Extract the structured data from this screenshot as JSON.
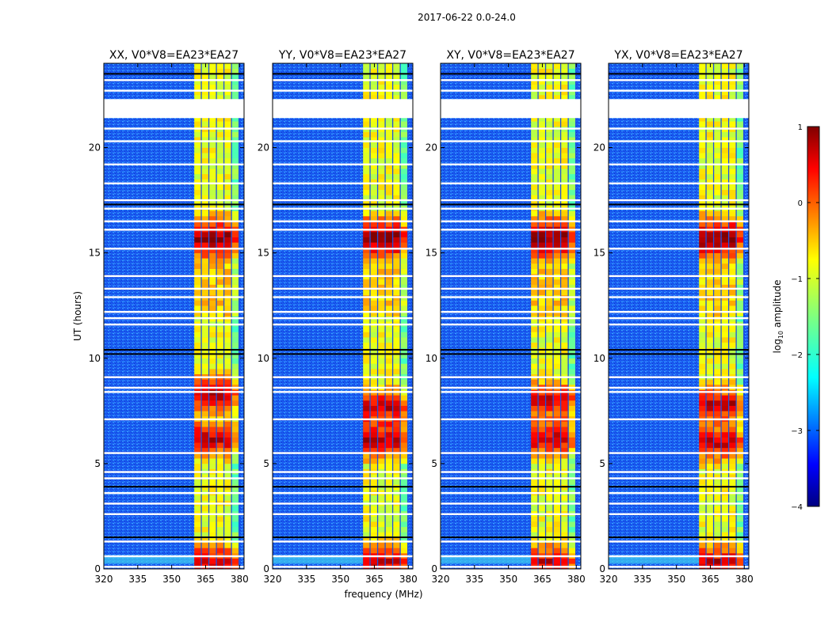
{
  "figure": {
    "suptitle": "2017-06-22 0.0-24.0"
  },
  "chart_data": [
    {
      "type": "heatmap",
      "title": "XX, V0*V8=EA23*EA27",
      "xlabel": "",
      "ylabel": "UT (hours)",
      "xlim": [
        320,
        382
      ],
      "ylim": [
        0,
        24
      ],
      "xticks": [
        "320",
        "335",
        "350",
        "365",
        "380"
      ],
      "yticks": [
        "0",
        "5",
        "10",
        "15",
        "20"
      ],
      "strong_band_mhz": [
        360,
        380
      ],
      "strong_peak_hours": [
        0.3,
        6.2,
        8.3,
        15.7
      ]
    },
    {
      "type": "heatmap",
      "title": "YY, V0*V8=EA23*EA27",
      "xlabel": "frequency (MHz)",
      "ylabel": "",
      "xlim": [
        320,
        382
      ],
      "ylim": [
        0,
        24
      ],
      "xticks": [
        "320",
        "335",
        "350",
        "365",
        "380"
      ],
      "yticks": [
        "0",
        "5",
        "10",
        "15",
        "20"
      ],
      "strong_band_mhz": [
        360,
        380
      ],
      "strong_peak_hours": [
        0.3,
        6.1,
        7.7,
        15.7
      ]
    },
    {
      "type": "heatmap",
      "title": "XY, V0*V8=EA23*EA27",
      "xlabel": "",
      "ylabel": "",
      "xlim": [
        320,
        382
      ],
      "ylim": [
        0,
        24
      ],
      "xticks": [
        "320",
        "335",
        "350",
        "365",
        "380"
      ],
      "yticks": [
        "0",
        "5",
        "10",
        "15",
        "20"
      ],
      "strong_band_mhz": [
        360,
        380
      ],
      "strong_peak_hours": [
        0.3,
        6.2,
        8.0,
        15.7
      ]
    },
    {
      "type": "heatmap",
      "title": "YX, V0*V8=EA23*EA27",
      "xlabel": "",
      "ylabel": "",
      "xlim": [
        320,
        382
      ],
      "ylim": [
        0,
        24
      ],
      "xticks": [
        "320",
        "335",
        "350",
        "365",
        "380"
      ],
      "yticks": [
        "0",
        "5",
        "10",
        "15",
        "20"
      ],
      "strong_band_mhz": [
        360,
        380
      ],
      "strong_peak_hours": [
        0.3,
        6.0,
        7.8,
        15.7
      ]
    }
  ],
  "colorbar": {
    "label_base": "log",
    "label_sub": "10",
    "label_rest": " amplitude",
    "range": [
      -4,
      1
    ],
    "ticks": [
      "1",
      "0",
      "−1",
      "−2",
      "−3",
      "−4"
    ],
    "colormap": "jet"
  },
  "flags": {
    "gap_hours": [
      [
        21.4,
        22.3
      ]
    ],
    "white_lines_hours": [
      0.1,
      0.6,
      1.3,
      2.6,
      3.1,
      3.6,
      4.3,
      4.6,
      5.5,
      7.1,
      8.4,
      8.6,
      9.1,
      11.6,
      11.9,
      12.2,
      12.9,
      13.3,
      13.9,
      15.2,
      16.1,
      16.5,
      17.1,
      17.5,
      18.3,
      19.2,
      20.3,
      20.9,
      22.7,
      23.2
    ],
    "black_lines_hours": [
      1.5,
      3.9,
      10.2,
      10.4,
      17.3,
      23.5
    ]
  }
}
